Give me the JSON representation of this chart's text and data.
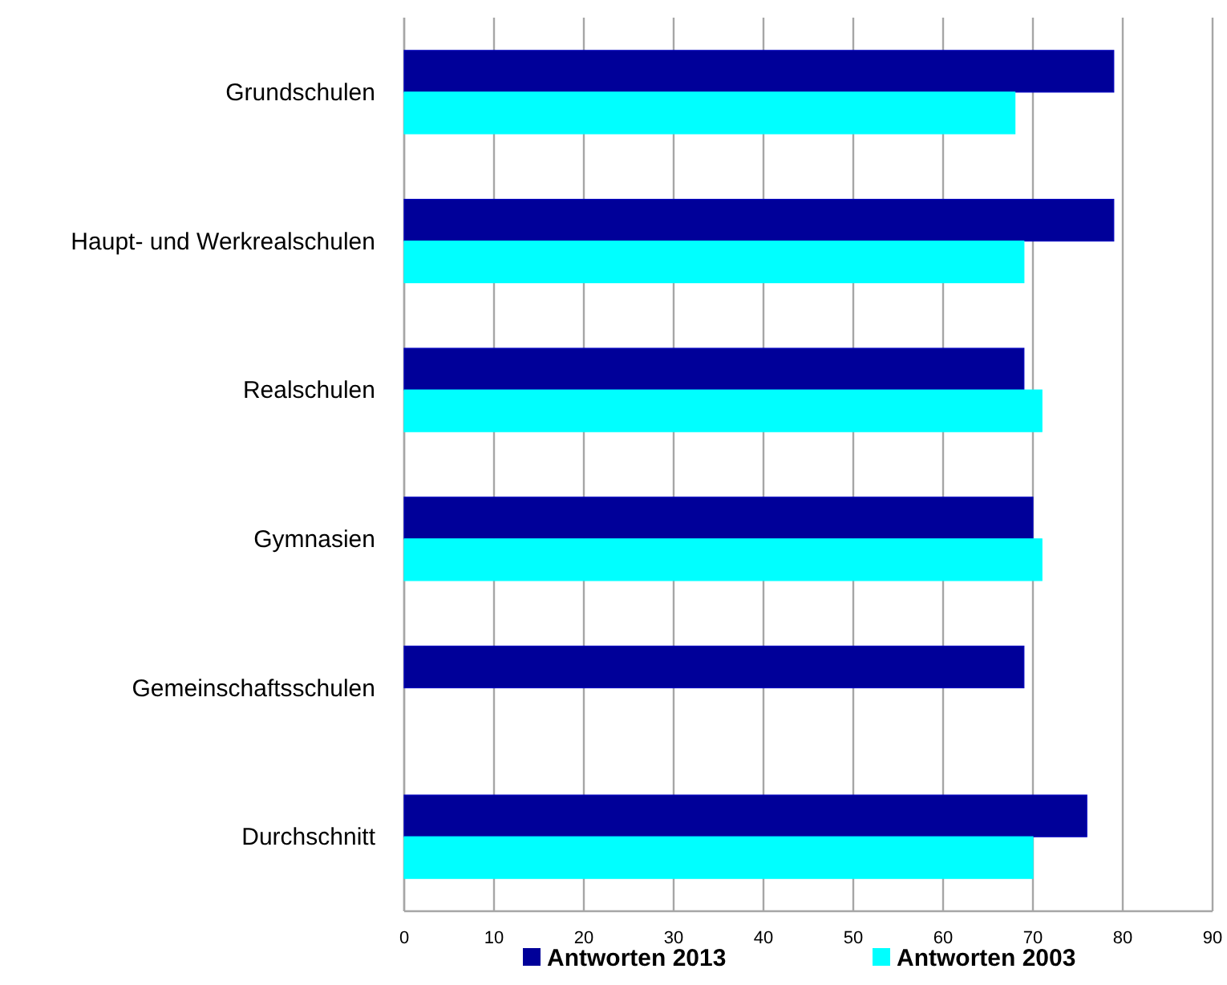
{
  "chart_data": {
    "type": "bar",
    "orientation": "horizontal",
    "categories": [
      "Grundschulen",
      "Haupt- und Werkrealschulen",
      "Realschulen",
      "Gymnasien",
      "Gemeinschaftsschulen",
      "Durchschnitt"
    ],
    "series": [
      {
        "name": "Antworten 2013",
        "color": "#000099",
        "values": [
          79,
          79,
          69,
          70,
          69,
          76
        ]
      },
      {
        "name": "Antworten 2003",
        "color": "#00ffff",
        "values": [
          68,
          69,
          71,
          71,
          null,
          70
        ]
      }
    ],
    "xlim": [
      0,
      90
    ],
    "xticks": [
      0,
      10,
      20,
      30,
      40,
      50,
      60,
      70,
      80,
      90
    ],
    "grid": "x",
    "legend": "bottom"
  }
}
